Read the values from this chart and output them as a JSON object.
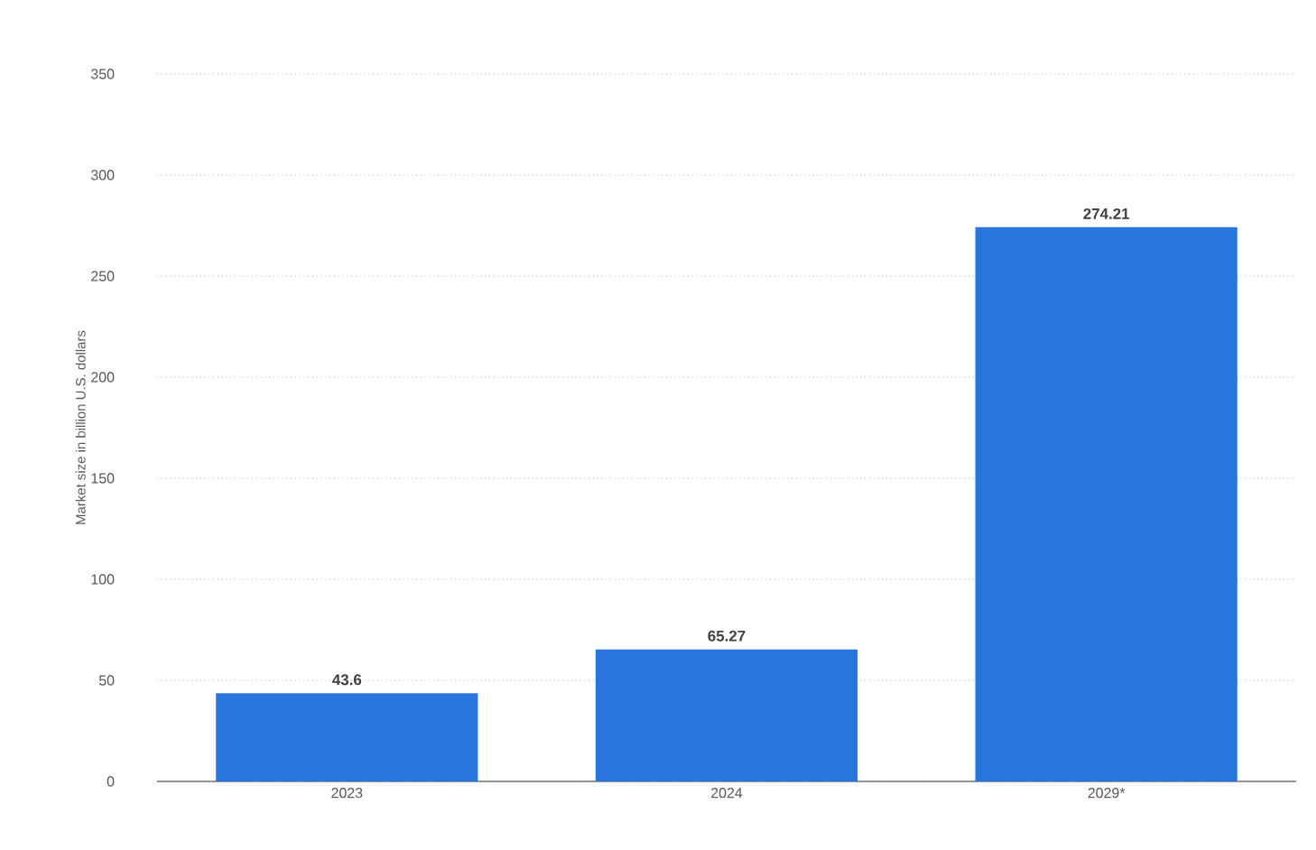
{
  "chart_data": {
    "type": "bar",
    "ylabel": "Market size in billion U.S. dollars",
    "categories": [
      "2023",
      "2024",
      "2029*"
    ],
    "values": [
      43.6,
      65.27,
      274.21
    ],
    "color": "#2876dd",
    "ylim": [
      0,
      350
    ],
    "yticks": [
      0,
      50,
      100,
      150,
      200,
      250,
      300,
      350
    ],
    "grid": "y",
    "data_labels": true
  }
}
